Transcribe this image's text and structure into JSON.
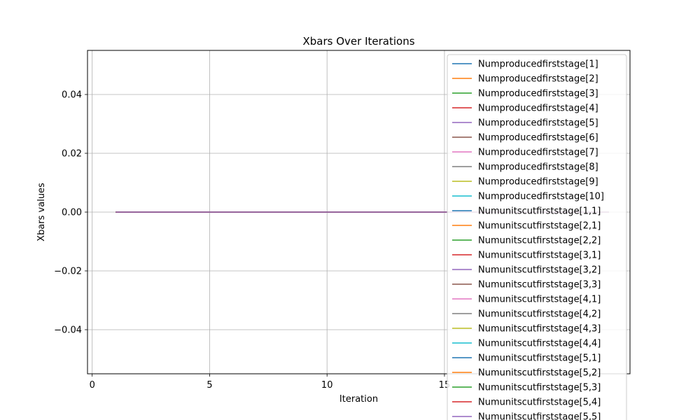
{
  "chart_data": {
    "type": "line",
    "title": "Xbars Over Iterations",
    "xlabel": "Iteration",
    "ylabel": "Xbars values",
    "xlim": [
      -0.2,
      22.9
    ],
    "ylim": [
      -0.055,
      0.055
    ],
    "x_ticks": [
      0,
      5,
      10,
      15
    ],
    "y_ticks": [
      -0.04,
      -0.02,
      0.0,
      0.02,
      0.04
    ],
    "y_tick_labels": [
      "−0.04",
      "−0.02",
      "0.00",
      "0.02",
      "0.04"
    ],
    "grid": true,
    "legend_position": "upper right",
    "x": [
      1,
      2,
      3,
      4,
      5,
      6,
      7,
      8,
      9,
      10,
      11,
      12,
      13,
      14,
      15,
      16,
      17,
      18,
      19,
      20,
      21,
      22
    ],
    "series_value": 0.0,
    "series": [
      {
        "name": "Numproducedfirststage[1]",
        "color": "#1f77b4"
      },
      {
        "name": "Numproducedfirststage[2]",
        "color": "#ff7f0e"
      },
      {
        "name": "Numproducedfirststage[3]",
        "color": "#2ca02c"
      },
      {
        "name": "Numproducedfirststage[4]",
        "color": "#d62728"
      },
      {
        "name": "Numproducedfirststage[5]",
        "color": "#9467bd"
      },
      {
        "name": "Numproducedfirststage[6]",
        "color": "#8c564b"
      },
      {
        "name": "Numproducedfirststage[7]",
        "color": "#e377c2"
      },
      {
        "name": "Numproducedfirststage[8]",
        "color": "#7f7f7f"
      },
      {
        "name": "Numproducedfirststage[9]",
        "color": "#bcbd22"
      },
      {
        "name": "Numproducedfirststage[10]",
        "color": "#17becf"
      },
      {
        "name": "Numunitscutfirststage[1,1]",
        "color": "#1f77b4"
      },
      {
        "name": "Numunitscutfirststage[2,1]",
        "color": "#ff7f0e"
      },
      {
        "name": "Numunitscutfirststage[2,2]",
        "color": "#2ca02c"
      },
      {
        "name": "Numunitscutfirststage[3,1]",
        "color": "#d62728"
      },
      {
        "name": "Numunitscutfirststage[3,2]",
        "color": "#9467bd"
      },
      {
        "name": "Numunitscutfirststage[3,3]",
        "color": "#8c564b"
      },
      {
        "name": "Numunitscutfirststage[4,1]",
        "color": "#e377c2"
      },
      {
        "name": "Numunitscutfirststage[4,2]",
        "color": "#7f7f7f"
      },
      {
        "name": "Numunitscutfirststage[4,3]",
        "color": "#bcbd22"
      },
      {
        "name": "Numunitscutfirststage[4,4]",
        "color": "#17becf"
      },
      {
        "name": "Numunitscutfirststage[5,1]",
        "color": "#1f77b4"
      },
      {
        "name": "Numunitscutfirststage[5,2]",
        "color": "#ff7f0e"
      },
      {
        "name": "Numunitscutfirststage[5,3]",
        "color": "#2ca02c"
      },
      {
        "name": "Numunitscutfirststage[5,4]",
        "color": "#d62728"
      },
      {
        "name": "Numunitscutfirststage[5,5]",
        "color": "#9467bd"
      }
    ]
  }
}
